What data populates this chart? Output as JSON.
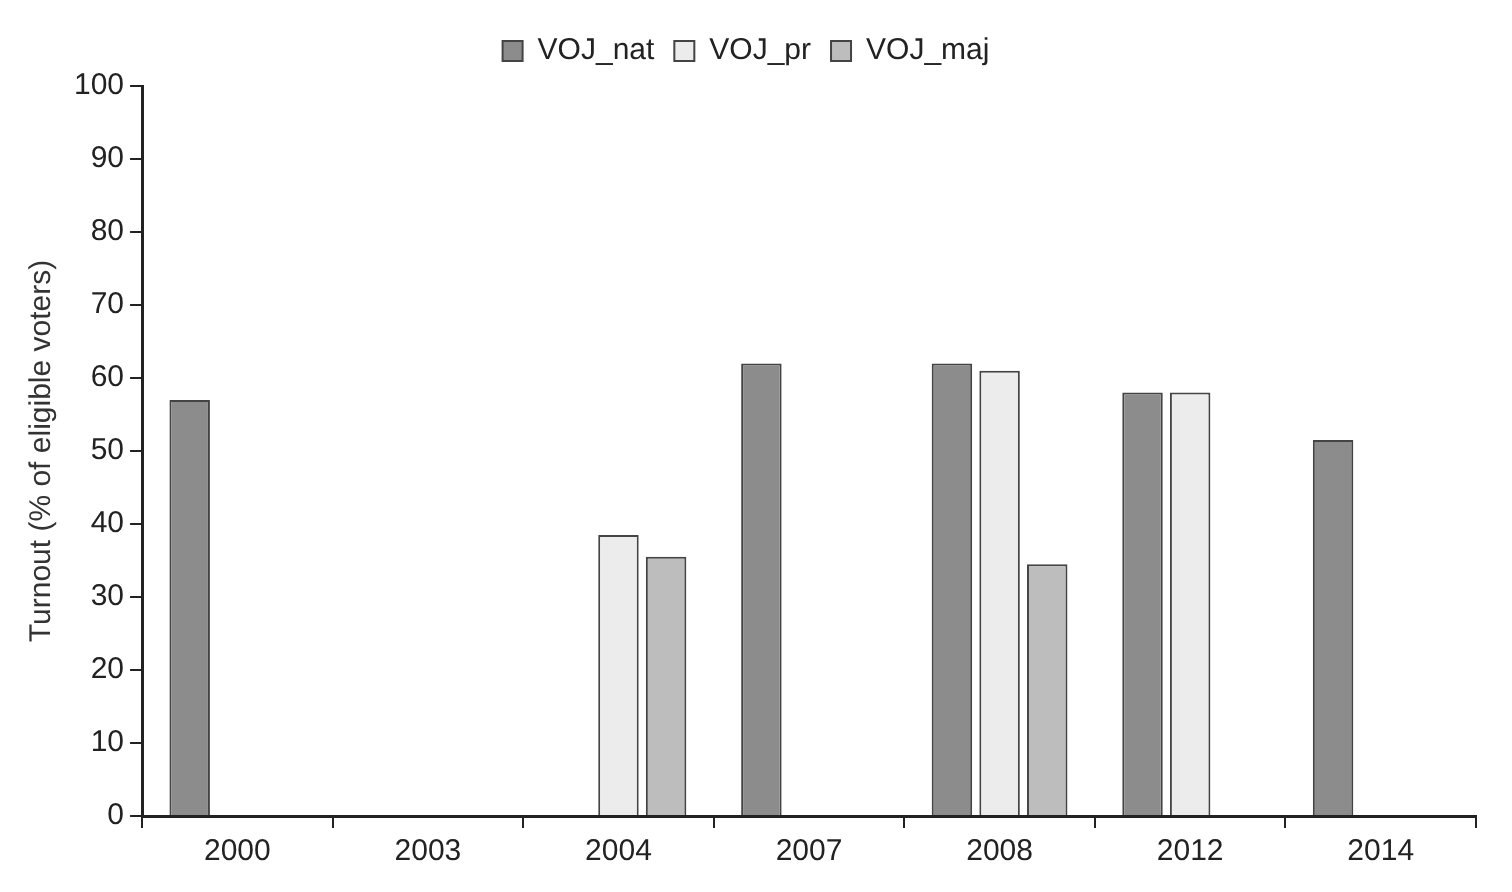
{
  "chart_data": {
    "type": "bar",
    "ylabel": "Turnout (% of eligible voters)",
    "categories": [
      "2000",
      "2003",
      "2004",
      "2007",
      "2008",
      "2012",
      "2014"
    ],
    "series": [
      {
        "name": "VOJ_nat",
        "color": "#8c8c8c",
        "values": [
          57,
          null,
          null,
          62,
          62,
          58,
          51.5
        ]
      },
      {
        "name": "VOJ_pr",
        "color": "#ececec",
        "values": [
          null,
          null,
          38.5,
          null,
          61,
          58,
          null
        ]
      },
      {
        "name": "VOJ_maj",
        "color": "#bdbdbd",
        "values": [
          null,
          null,
          35.5,
          null,
          34.5,
          null,
          null
        ]
      }
    ],
    "ylim": [
      0,
      100
    ],
    "yticks": [
      0,
      10,
      20,
      30,
      40,
      50,
      60,
      70,
      80,
      90,
      100
    ],
    "grid": false,
    "legend": "top"
  }
}
